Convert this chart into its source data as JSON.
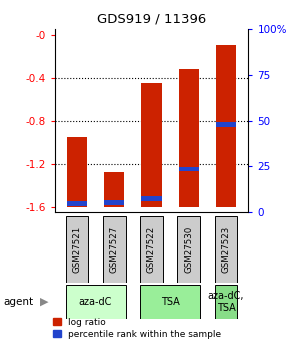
{
  "title": "GDS919 / 11396",
  "samples": [
    "GSM27521",
    "GSM27527",
    "GSM27522",
    "GSM27530",
    "GSM27523"
  ],
  "log_ratios": [
    -0.95,
    -1.28,
    -0.45,
    -0.32,
    -0.1
  ],
  "percentile_ranks": [
    2.0,
    2.5,
    5.0,
    22.0,
    48.0
  ],
  "groups": [
    {
      "label": "aza-dC",
      "indices": [
        0,
        1
      ],
      "color": "#ccffcc"
    },
    {
      "label": "TSA",
      "indices": [
        2,
        3
      ],
      "color": "#99ee99"
    },
    {
      "label": "aza-dC,\nTSA",
      "indices": [
        4
      ],
      "color": "#88dd88"
    }
  ],
  "ylim_left": [
    -1.65,
    0.05
  ],
  "ylim_right": [
    0,
    100
  ],
  "yticks_left": [
    0.0,
    -0.4,
    -0.8,
    -1.2,
    -1.6
  ],
  "ytick_labels_left": [
    "-0",
    "-0.4",
    "-0.8",
    "-1.2",
    "-1.6"
  ],
  "yticks_right": [
    100,
    75,
    50,
    25,
    0
  ],
  "ytick_labels_right": [
    "100%",
    "75",
    "50",
    "25",
    "0"
  ],
  "bar_color": "#cc2200",
  "percentile_color": "#2244cc",
  "bar_width": 0.55,
  "baseline": -1.6,
  "agent_label": "agent",
  "legend_log_ratio": "log ratio",
  "legend_percentile": "percentile rank within the sample",
  "sample_box_color": "#cccccc",
  "grid_ticks": [
    -0.4,
    -0.8,
    -1.2
  ]
}
